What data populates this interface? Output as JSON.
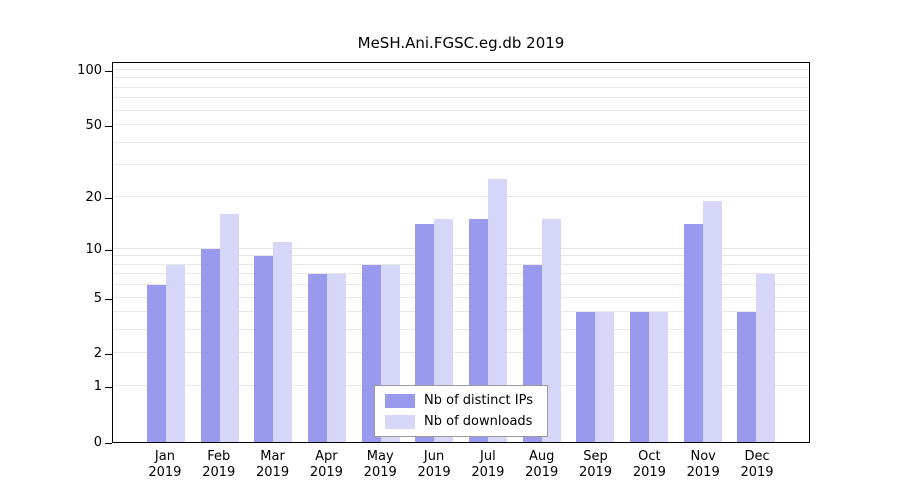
{
  "chart_data": {
    "type": "bar",
    "title": "MeSH.Ani.FGSC.eg.db 2019",
    "categories": [
      "Jan",
      "Feb",
      "Mar",
      "Apr",
      "May",
      "Jun",
      "Jul",
      "Aug",
      "Sep",
      "Oct",
      "Nov",
      "Dec"
    ],
    "year": "2019",
    "series": [
      {
        "name": "Nb of distinct IPs",
        "color": "#9999ee",
        "values": [
          6,
          10,
          9,
          7,
          8,
          14,
          15,
          8,
          4,
          4,
          14,
          4
        ]
      },
      {
        "name": "Nb of downloads",
        "color": "#d6d6f8",
        "values": [
          8,
          16,
          11,
          7,
          8,
          15,
          25,
          15,
          4,
          4,
          19,
          7
        ]
      }
    ],
    "y_axis": {
      "scale": "log1p",
      "ticks": [
        100,
        50,
        20,
        10,
        5,
        2,
        1,
        0
      ],
      "gridlines": [
        1,
        2,
        3,
        4,
        5,
        6,
        7,
        8,
        9,
        10,
        20,
        30,
        40,
        50,
        60,
        70,
        80,
        90,
        100
      ]
    },
    "legend": {
      "position": "bottom-center-inside"
    },
    "grid": "horizontal",
    "plot_border_color": "#000000",
    "gridline_color": "#e7e7e7"
  }
}
